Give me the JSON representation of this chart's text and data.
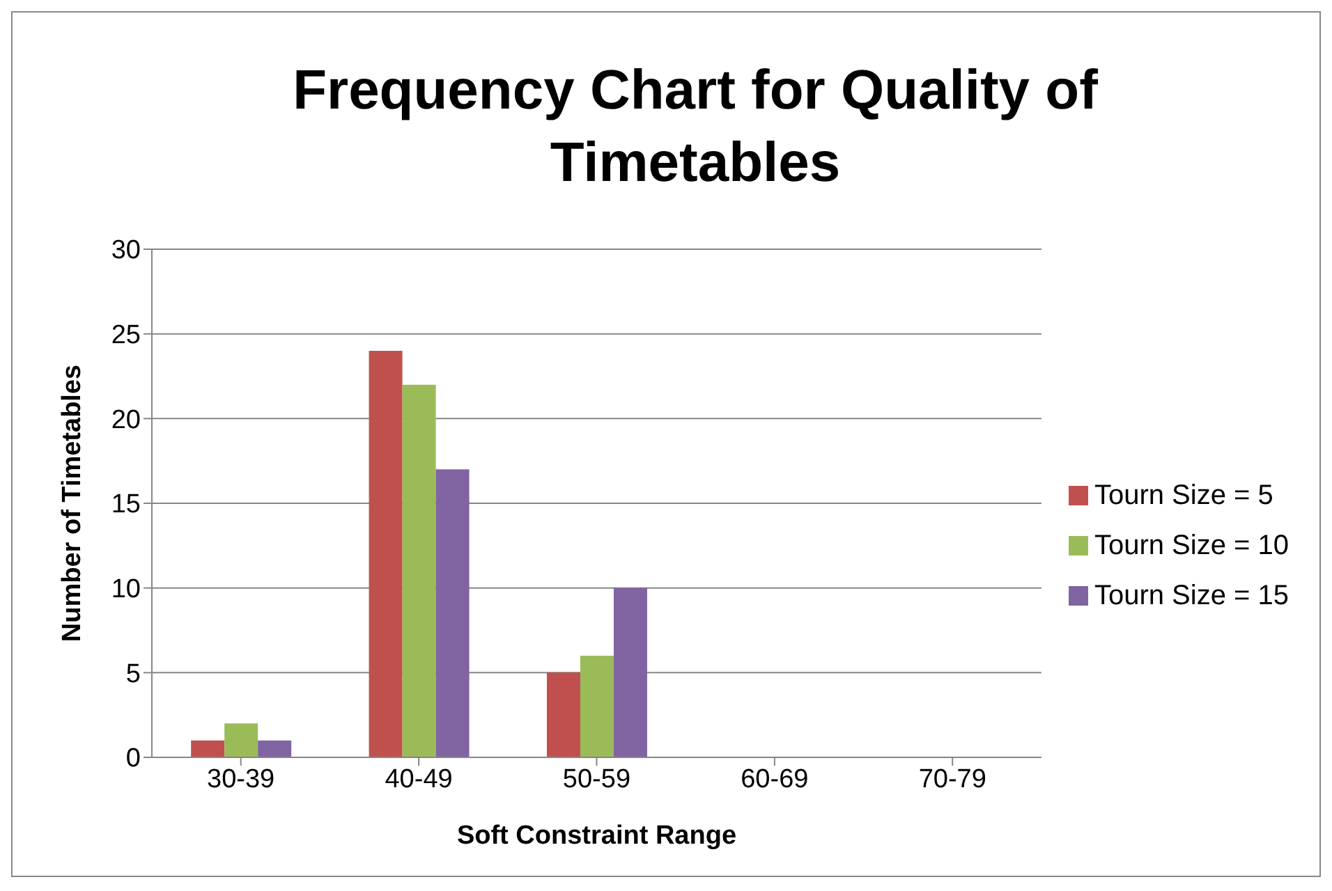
{
  "chart_data": {
    "type": "bar",
    "title": "Frequency Chart for Quality of Timetables",
    "xlabel": "Soft Constraint Range",
    "ylabel": "Number of Timetables",
    "categories": [
      "30-39",
      "40-49",
      "50-59",
      "60-69",
      "70-79"
    ],
    "series": [
      {
        "name": "Tourn Size = 5",
        "color": "#c0504d",
        "values": [
          1,
          24,
          5,
          0,
          0
        ]
      },
      {
        "name": "Tourn Size = 10",
        "color": "#9bbb59",
        "values": [
          2,
          22,
          6,
          0,
          0
        ]
      },
      {
        "name": "Tourn Size = 15",
        "color": "#8064a2",
        "values": [
          1,
          17,
          10,
          0,
          0
        ]
      }
    ],
    "ylim": [
      0,
      30
    ],
    "yticks": [
      0,
      5,
      10,
      15,
      20,
      25,
      30
    ],
    "grid": "y",
    "legend": "right"
  }
}
